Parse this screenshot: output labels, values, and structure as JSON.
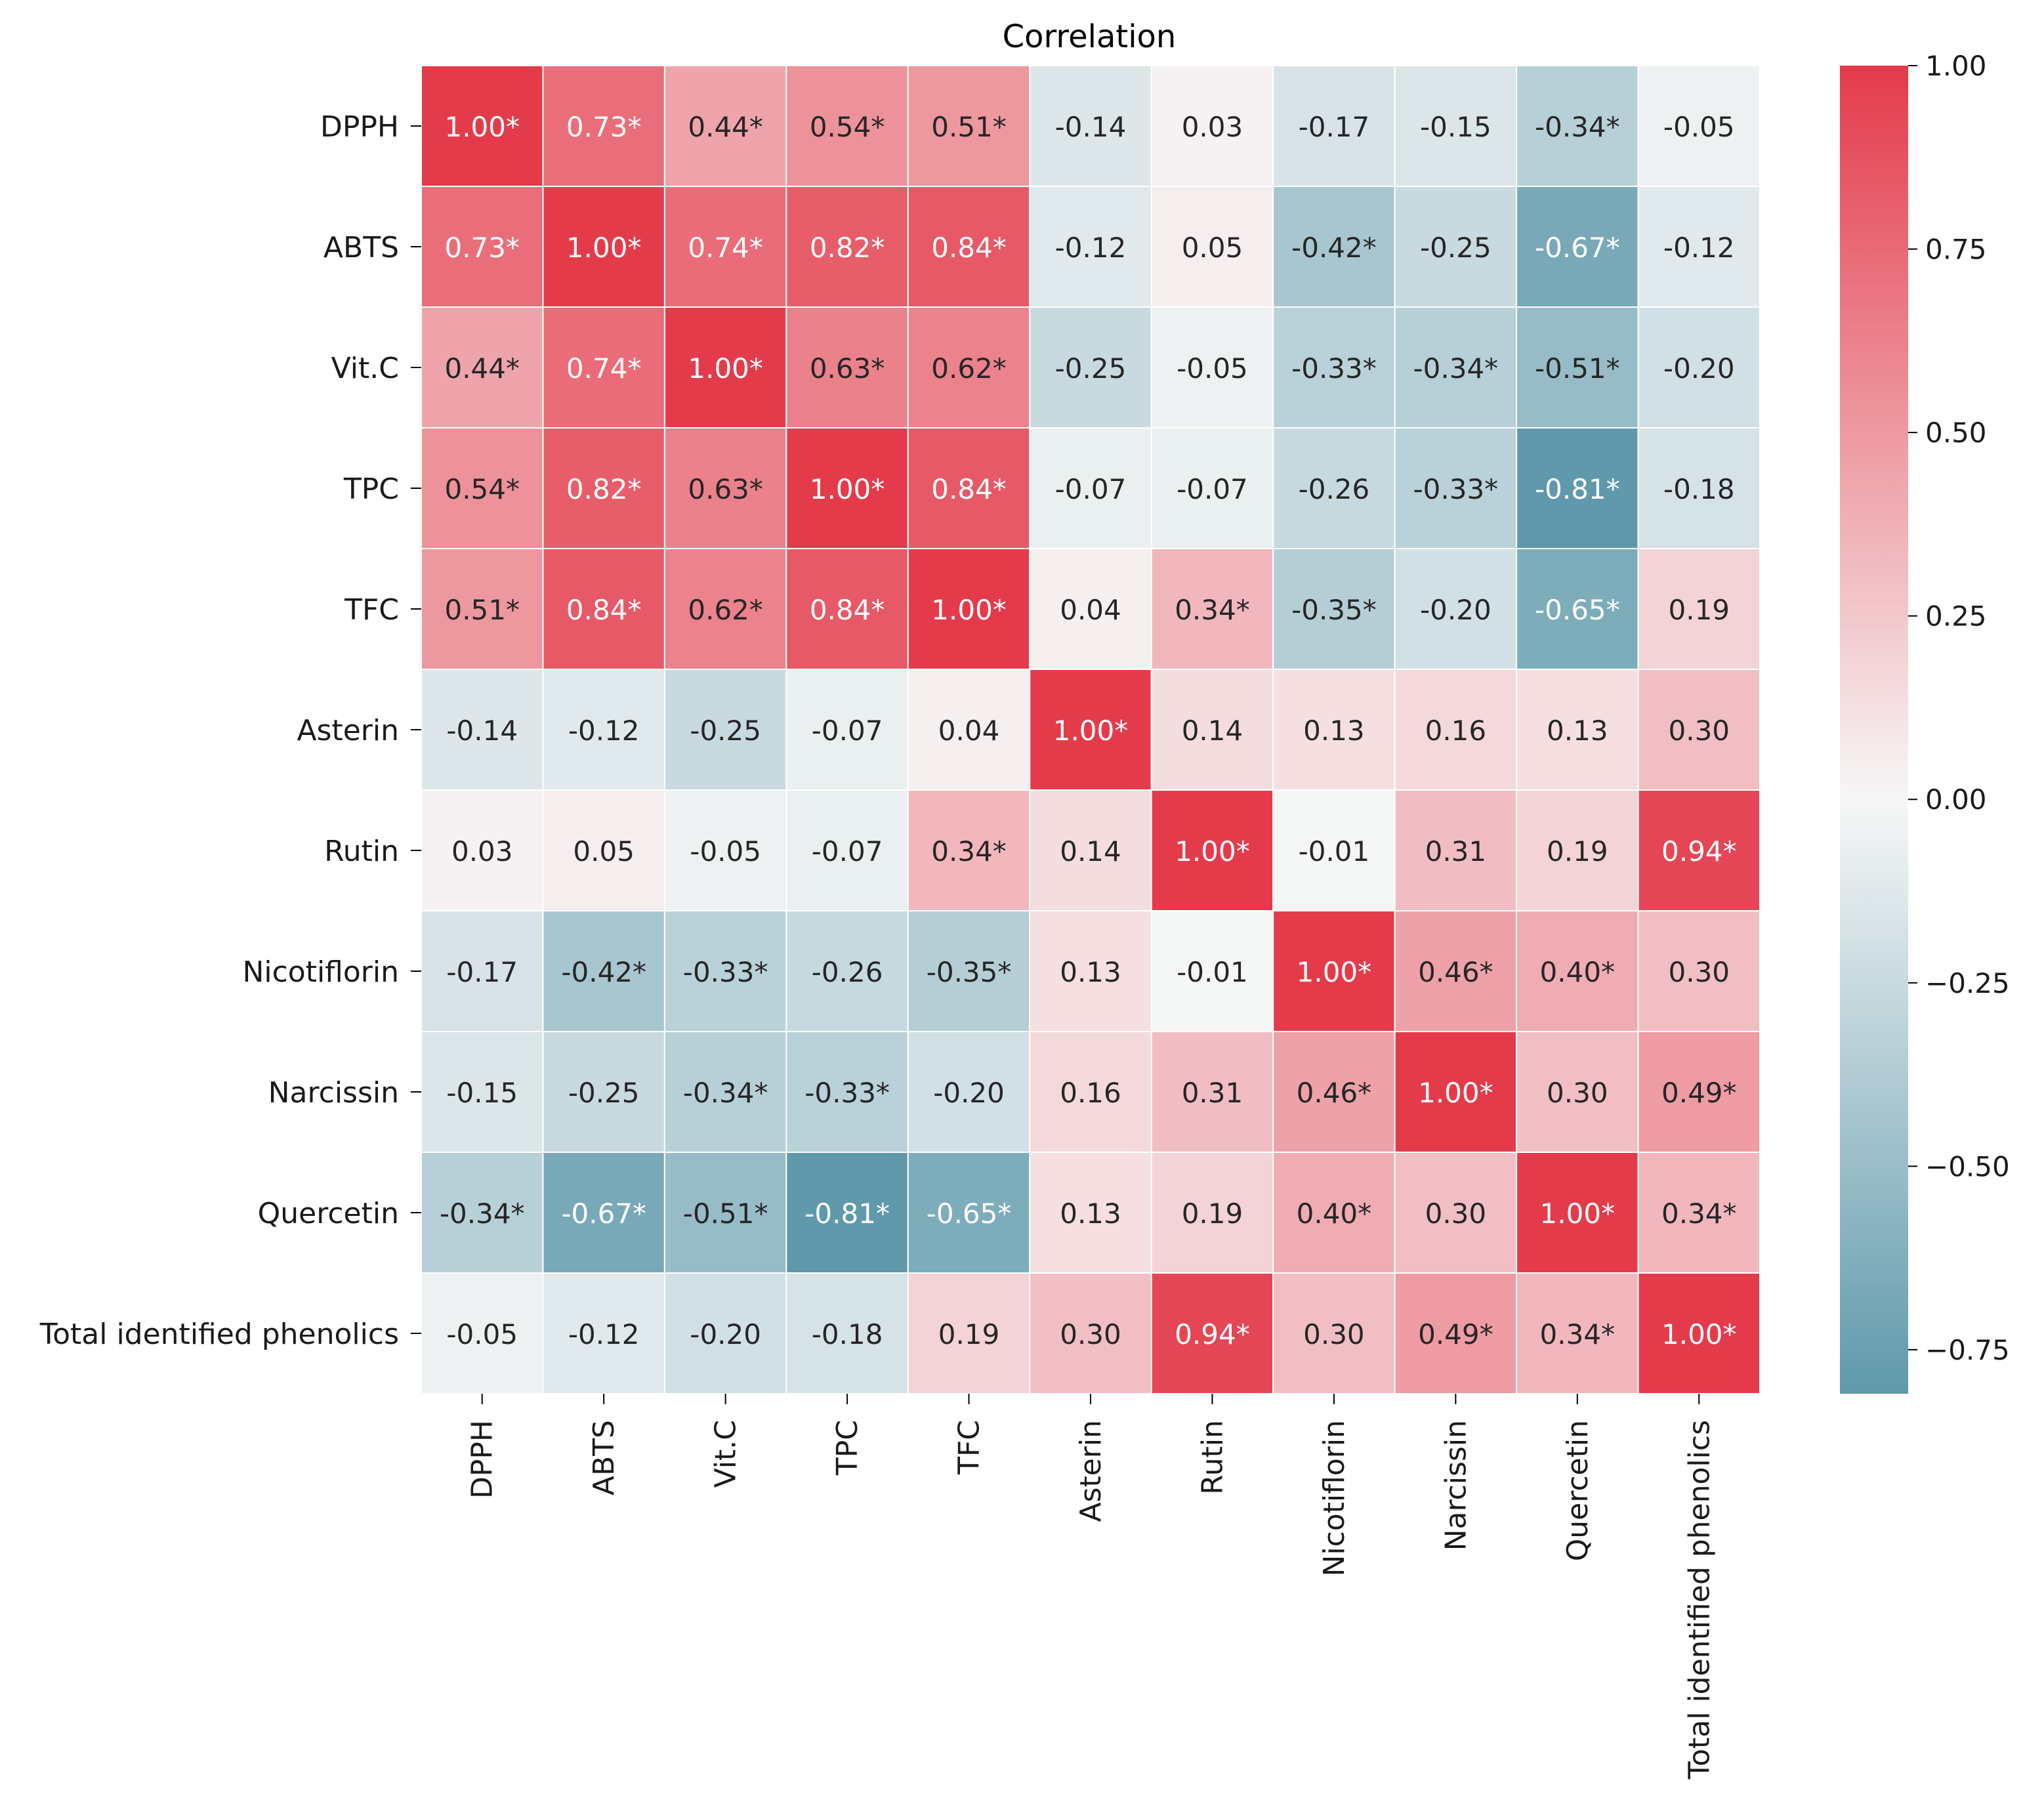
{
  "chart_data": {
    "type": "heatmap",
    "title": "Correlation",
    "xlabel": "",
    "ylabel": "",
    "categories": [
      "DPPH",
      "ABTS",
      "Vit.C",
      "TPC",
      "TFC",
      "Asterin",
      "Rutin",
      "Nicotiflorin",
      "Narcissin",
      "Quercetin",
      "Total identified phenolics"
    ],
    "values": [
      [
        1.0,
        0.73,
        0.44,
        0.54,
        0.51,
        -0.14,
        0.03,
        -0.17,
        -0.15,
        -0.34,
        -0.05
      ],
      [
        0.73,
        1.0,
        0.74,
        0.82,
        0.84,
        -0.12,
        0.05,
        -0.42,
        -0.25,
        -0.67,
        -0.12
      ],
      [
        0.44,
        0.74,
        1.0,
        0.63,
        0.62,
        -0.25,
        -0.05,
        -0.33,
        -0.34,
        -0.51,
        -0.2
      ],
      [
        0.54,
        0.82,
        0.63,
        1.0,
        0.84,
        -0.07,
        -0.07,
        -0.26,
        -0.33,
        -0.81,
        -0.18
      ],
      [
        0.51,
        0.84,
        0.62,
        0.84,
        1.0,
        0.04,
        0.34,
        -0.35,
        -0.2,
        -0.65,
        0.19
      ],
      [
        -0.14,
        -0.12,
        -0.25,
        -0.07,
        0.04,
        1.0,
        0.14,
        0.13,
        0.16,
        0.13,
        0.3
      ],
      [
        0.03,
        0.05,
        -0.05,
        -0.07,
        0.34,
        0.14,
        1.0,
        -0.01,
        0.31,
        0.19,
        0.94
      ],
      [
        -0.17,
        -0.42,
        -0.33,
        -0.26,
        -0.35,
        0.13,
        -0.01,
        1.0,
        0.46,
        0.4,
        0.3
      ],
      [
        -0.15,
        -0.25,
        -0.34,
        -0.33,
        -0.2,
        0.16,
        0.31,
        0.46,
        1.0,
        0.3,
        0.49
      ],
      [
        -0.34,
        -0.67,
        -0.51,
        -0.81,
        -0.65,
        0.13,
        0.19,
        0.4,
        0.3,
        1.0,
        0.34
      ],
      [
        -0.05,
        -0.12,
        -0.2,
        -0.18,
        0.19,
        0.3,
        0.94,
        0.3,
        0.49,
        0.34,
        1.0
      ]
    ],
    "labels": [
      [
        "1.00*",
        "0.73*",
        "0.44*",
        "0.54*",
        "0.51*",
        "-0.14",
        "0.03",
        "-0.17",
        "-0.15",
        "-0.34*",
        "-0.05"
      ],
      [
        "0.73*",
        "1.00*",
        "0.74*",
        "0.82*",
        "0.84*",
        "-0.12",
        "0.05",
        "-0.42*",
        "-0.25",
        "-0.67*",
        "-0.12"
      ],
      [
        "0.44*",
        "0.74*",
        "1.00*",
        "0.63*",
        "0.62*",
        "-0.25",
        "-0.05",
        "-0.33*",
        "-0.34*",
        "-0.51*",
        "-0.20"
      ],
      [
        "0.54*",
        "0.82*",
        "0.63*",
        "1.00*",
        "0.84*",
        "-0.07",
        "-0.07",
        "-0.26",
        "-0.33*",
        "-0.81*",
        "-0.18"
      ],
      [
        "0.51*",
        "0.84*",
        "0.62*",
        "0.84*",
        "1.00*",
        "0.04",
        "0.34*",
        "-0.35*",
        "-0.20",
        "-0.65*",
        "0.19"
      ],
      [
        "-0.14",
        "-0.12",
        "-0.25",
        "-0.07",
        "0.04",
        "1.00*",
        "0.14",
        "0.13",
        "0.16",
        "0.13",
        "0.30"
      ],
      [
        "0.03",
        "0.05",
        "-0.05",
        "-0.07",
        "0.34*",
        "0.14",
        "1.00*",
        "-0.01",
        "0.31",
        "0.19",
        "0.94*"
      ],
      [
        "-0.17",
        "-0.42*",
        "-0.33*",
        "-0.26",
        "-0.35*",
        "0.13",
        "-0.01",
        "1.00*",
        "0.46*",
        "0.40*",
        "0.30"
      ],
      [
        "-0.15",
        "-0.25",
        "-0.34*",
        "-0.33*",
        "-0.20",
        "0.16",
        "0.31",
        "0.46*",
        "1.00*",
        "0.30",
        "0.49*"
      ],
      [
        "-0.34*",
        "-0.67*",
        "-0.51*",
        "-0.81*",
        "-0.65*",
        "0.13",
        "0.19",
        "0.40*",
        "0.30",
        "1.00*",
        "0.34*"
      ],
      [
        "-0.05",
        "-0.12",
        "-0.20",
        "-0.18",
        "0.19",
        "0.30",
        "0.94*",
        "0.30",
        "0.49*",
        "0.34*",
        "1.00*"
      ]
    ],
    "colorbar": {
      "vmin": -0.81,
      "vmax": 1.0,
      "ticks": [
        1.0,
        0.75,
        0.5,
        0.25,
        0.0,
        -0.25,
        -0.5,
        -0.75
      ],
      "tick_labels": [
        "1.00",
        "0.75",
        "0.50",
        "0.25",
        "0.00",
        "−0.25",
        "−0.50",
        "−0.75"
      ]
    },
    "colors": {
      "negative": "#5f99ab",
      "neutral": "#f7f7f7",
      "positive": "#e43b4b",
      "text_dark": "#262626",
      "text_light": "#ffffff"
    },
    "grid": true
  }
}
